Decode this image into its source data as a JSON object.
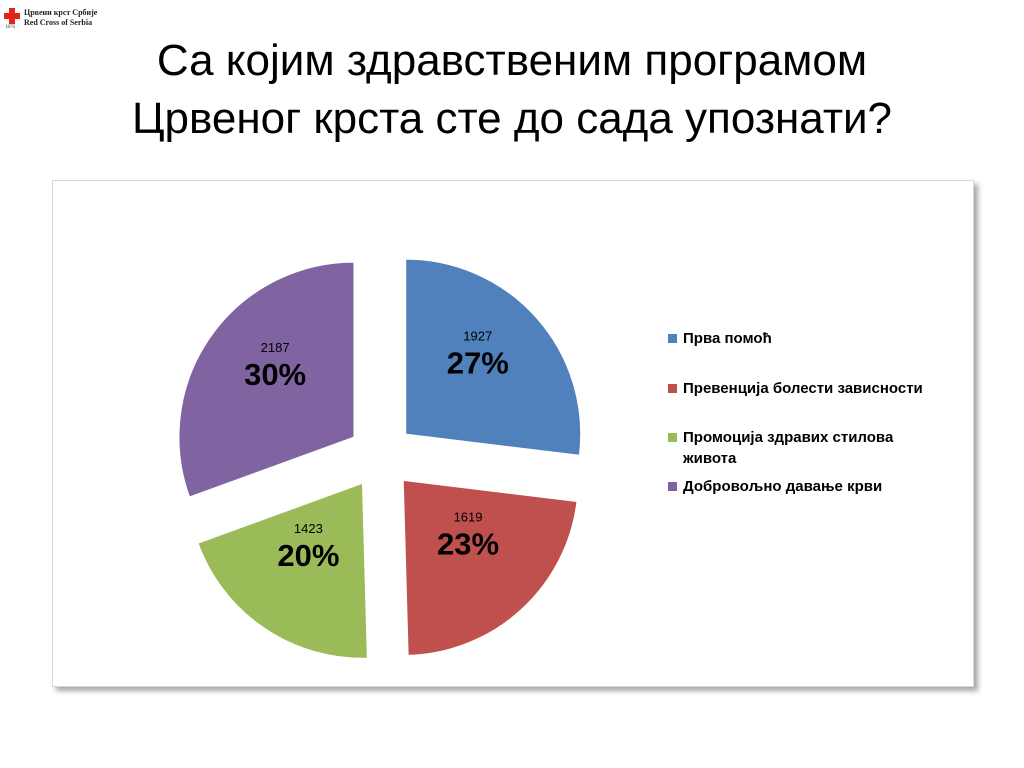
{
  "logo": {
    "line1": "Црвени крст Србије",
    "line2": "Red Cross of Serbia",
    "year": "1876",
    "colors": {
      "cross": "#e2231a"
    }
  },
  "slide": {
    "title_line1": "Са којим здравственим програмом",
    "title_line2": "Црвеног крста сте до сада упознати?"
  },
  "chart_data": {
    "type": "pie",
    "title": "",
    "slices": [
      {
        "name": "Прва помоћ",
        "value": 1927,
        "percent_label": "27%",
        "value_label": "1927",
        "color": "#4f81bd"
      },
      {
        "name": "Превенција болести зависности",
        "value": 1619,
        "percent_label": "23%",
        "value_label": "1619",
        "color": "#c0504d"
      },
      {
        "name": "Промоција здравих стилова живота",
        "value": 1423,
        "percent_label": "20%",
        "value_label": "1423",
        "color": "#9bbb59"
      },
      {
        "name": "Добровољно давање крви",
        "value": 2187,
        "percent_label": "30%",
        "value_label": "2187",
        "color": "#8064a2"
      }
    ],
    "exploded": true,
    "legend_position": "right"
  }
}
